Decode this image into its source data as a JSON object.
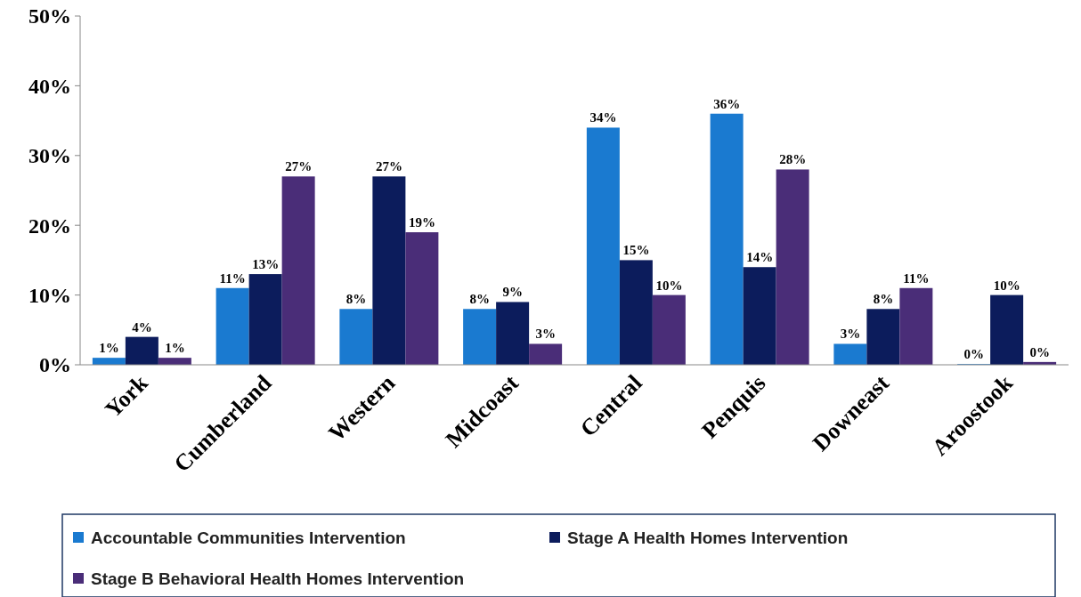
{
  "chart_data": {
    "type": "bar",
    "categories": [
      "York",
      "Cumberland",
      "Western",
      "Midcoast",
      "Central",
      "Penquis",
      "Downeast",
      "Aroostook"
    ],
    "series": [
      {
        "name": "Accountable Communities Intervention",
        "color": "#1a7ad0",
        "values": [
          1,
          11,
          8,
          8,
          34,
          36,
          3,
          0.1
        ],
        "value_labels": [
          "1%",
          "11%",
          "8%",
          "8%",
          "34%",
          "36%",
          "3%",
          "0%"
        ]
      },
      {
        "name": "Stage A Health Homes Intervention",
        "color": "#0c1c5c",
        "values": [
          4,
          13,
          27,
          9,
          15,
          14,
          8,
          10
        ],
        "value_labels": [
          "4%",
          "13%",
          "27%",
          "9%",
          "15%",
          "14%",
          "8%",
          "10%"
        ]
      },
      {
        "name": "Stage B Behavioral Health Homes Intervention",
        "color": "#4a2d78",
        "values": [
          1,
          27,
          19,
          3,
          10,
          28,
          11,
          0.4
        ],
        "value_labels": [
          "1%",
          "27%",
          "19%",
          "3%",
          "10%",
          "28%",
          "11%",
          "0%"
        ]
      }
    ],
    "ylim": [
      0,
      50
    ],
    "yticks": [
      {
        "value": 0,
        "label": "0%"
      },
      {
        "value": 10,
        "label": "10%"
      },
      {
        "value": 20,
        "label": "20%"
      },
      {
        "value": 30,
        "label": "30%"
      },
      {
        "value": 40,
        "label": "40%"
      },
      {
        "value": 50,
        "label": "50%"
      }
    ],
    "grid": false,
    "legend": "bottom"
  }
}
